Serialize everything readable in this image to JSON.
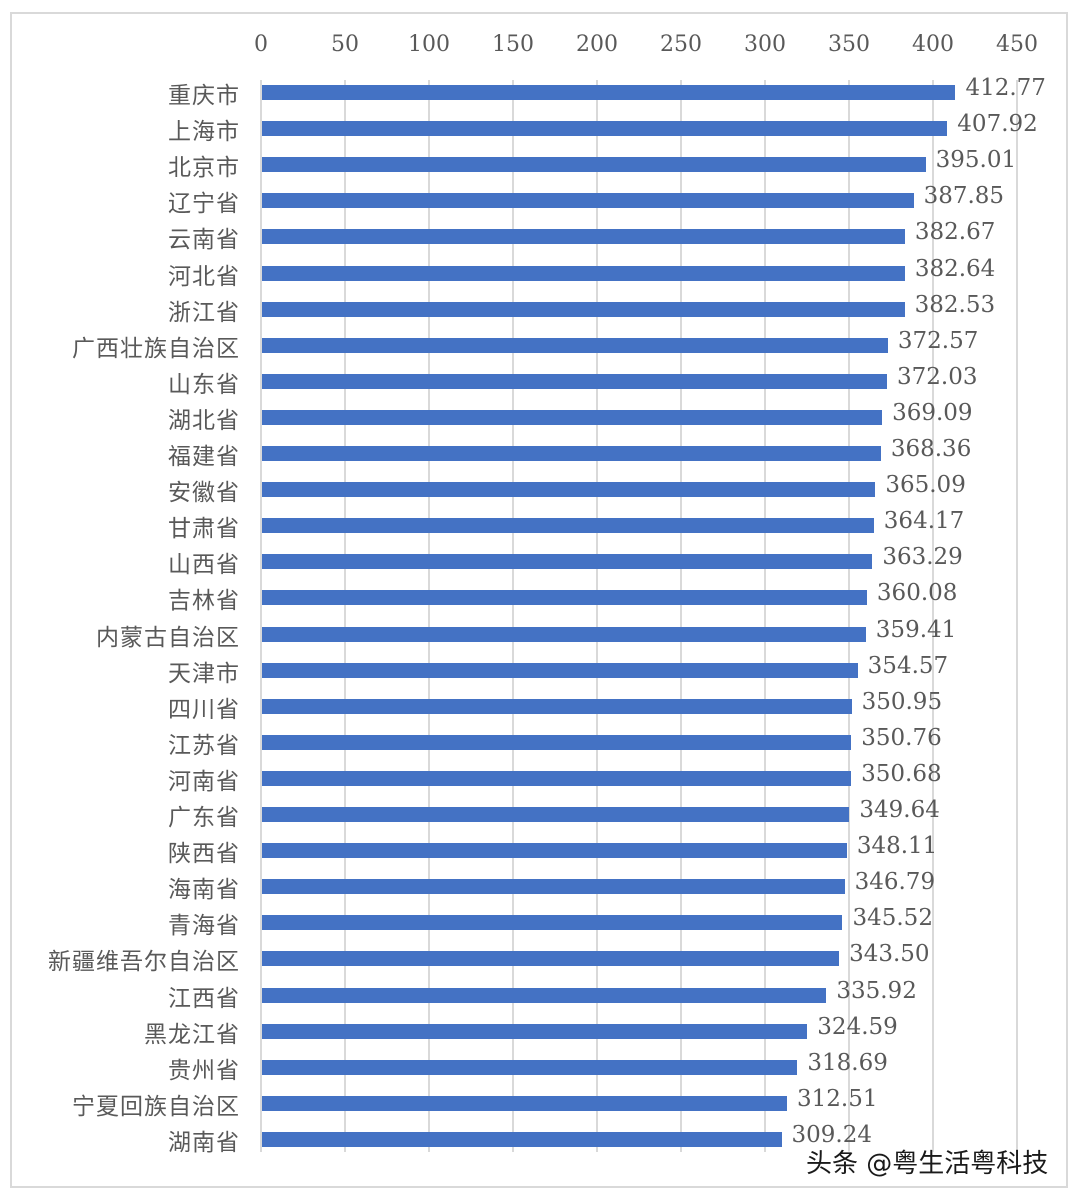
{
  "chart_data": {
    "type": "bar",
    "orientation": "horizontal",
    "title": "",
    "xlabel": "",
    "ylabel": "",
    "xlim": [
      0,
      450
    ],
    "x_ticks": [
      "0",
      "50",
      "100",
      "150",
      "200",
      "250",
      "300",
      "350",
      "400",
      "450"
    ],
    "x_axis_position": "top",
    "grid": true,
    "legend": null,
    "bar_color": "#4472c4",
    "categories": [
      "重庆市",
      "上海市",
      "北京市",
      "辽宁省",
      "云南省",
      "河北省",
      "浙江省",
      "广西壮族自治区",
      "山东省",
      "湖北省",
      "福建省",
      "安徽省",
      "甘肃省",
      "山西省",
      "吉林省",
      "内蒙古自治区",
      "天津市",
      "四川省",
      "江苏省",
      "河南省",
      "广东省",
      "陕西省",
      "海南省",
      "青海省",
      "新疆维吾尔自治区",
      "江西省",
      "黑龙江省",
      "贵州省",
      "宁夏回族自治区",
      "湖南省"
    ],
    "values": [
      412.77,
      407.92,
      395.01,
      387.85,
      382.67,
      382.64,
      382.53,
      372.57,
      372.03,
      369.09,
      368.36,
      365.09,
      364.17,
      363.29,
      360.08,
      359.41,
      354.57,
      350.95,
      350.76,
      350.68,
      349.64,
      348.11,
      346.79,
      345.52,
      343.5,
      335.92,
      324.59,
      318.69,
      312.51,
      309.24
    ],
    "value_labels": [
      "412.77",
      "407.92",
      "395.01",
      "387.85",
      "382.67",
      "382.64",
      "382.53",
      "372.57",
      "372.03",
      "369.09",
      "368.36",
      "365.09",
      "364.17",
      "363.29",
      "360.08",
      "359.41",
      "354.57",
      "350.95",
      "350.76",
      "350.68",
      "349.64",
      "348.11",
      "346.79",
      "345.52",
      "343.50",
      "335.92",
      "324.59",
      "318.69",
      "312.51",
      "309.24"
    ]
  },
  "watermark": "头条 @粤生活粤科技"
}
